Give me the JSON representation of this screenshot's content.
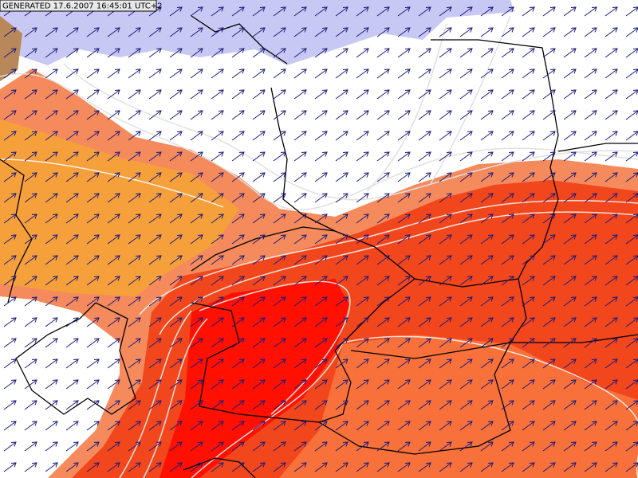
{
  "header": {
    "label": "GENERATED 17.6.2007 16:45:01 UTC+2"
  }
}
